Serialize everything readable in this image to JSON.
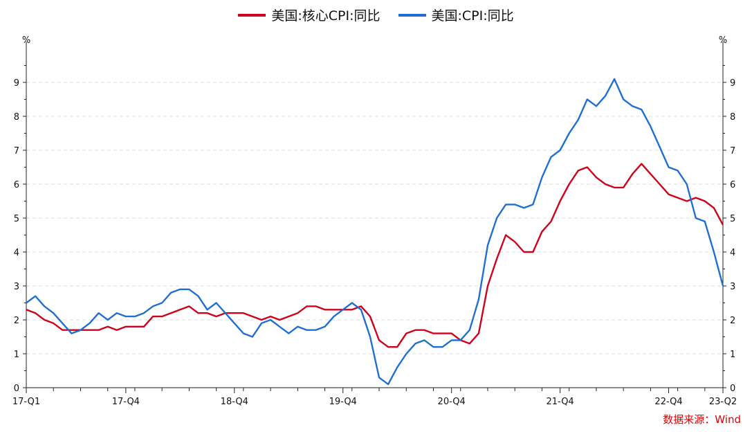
{
  "chart_data": {
    "type": "line",
    "y_unit_left": "%",
    "y_unit_right": "%",
    "ylim": [
      0,
      10
    ],
    "yticks": [
      0,
      1,
      2,
      3,
      4,
      5,
      6,
      7,
      8,
      9
    ],
    "grid": true,
    "legend_position": "top-center",
    "x_range_months": [
      "2017-01",
      "2023-06"
    ],
    "x_tick_labels": [
      {
        "label": "17-Q1",
        "month": "2017-01"
      },
      {
        "label": "17-Q4",
        "month": "2017-12"
      },
      {
        "label": "18-Q4",
        "month": "2018-12"
      },
      {
        "label": "19-Q4",
        "month": "2019-12"
      },
      {
        "label": "20-Q4",
        "month": "2020-12"
      },
      {
        "label": "21-Q4",
        "month": "2021-12"
      },
      {
        "label": "22-Q4",
        "month": "2022-12"
      },
      {
        "label": "23-Q2",
        "month": "2023-06"
      }
    ],
    "series": [
      {
        "name": "美国:核心CPI:同比",
        "color": "#d0021b",
        "x": [
          "2017-01",
          "2017-02",
          "2017-03",
          "2017-04",
          "2017-05",
          "2017-06",
          "2017-07",
          "2017-08",
          "2017-09",
          "2017-10",
          "2017-11",
          "2017-12",
          "2018-01",
          "2018-02",
          "2018-03",
          "2018-04",
          "2018-05",
          "2018-06",
          "2018-07",
          "2018-08",
          "2018-09",
          "2018-10",
          "2018-11",
          "2018-12",
          "2019-01",
          "2019-02",
          "2019-03",
          "2019-04",
          "2019-05",
          "2019-06",
          "2019-07",
          "2019-08",
          "2019-09",
          "2019-10",
          "2019-11",
          "2019-12",
          "2020-01",
          "2020-02",
          "2020-03",
          "2020-04",
          "2020-05",
          "2020-06",
          "2020-07",
          "2020-08",
          "2020-09",
          "2020-10",
          "2020-11",
          "2020-12",
          "2021-01",
          "2021-02",
          "2021-03",
          "2021-04",
          "2021-05",
          "2021-06",
          "2021-07",
          "2021-08",
          "2021-09",
          "2021-10",
          "2021-11",
          "2021-12",
          "2022-01",
          "2022-02",
          "2022-03",
          "2022-04",
          "2022-05",
          "2022-06",
          "2022-07",
          "2022-08",
          "2022-09",
          "2022-10",
          "2022-11",
          "2022-12",
          "2023-01",
          "2023-02",
          "2023-03",
          "2023-04",
          "2023-05",
          "2023-06"
        ],
        "values": [
          2.3,
          2.2,
          2.0,
          1.9,
          1.7,
          1.7,
          1.7,
          1.7,
          1.7,
          1.8,
          1.7,
          1.8,
          1.8,
          1.8,
          2.1,
          2.1,
          2.2,
          2.3,
          2.4,
          2.2,
          2.2,
          2.1,
          2.2,
          2.2,
          2.2,
          2.1,
          2.0,
          2.1,
          2.0,
          2.1,
          2.2,
          2.4,
          2.4,
          2.3,
          2.3,
          2.3,
          2.3,
          2.4,
          2.1,
          1.4,
          1.2,
          1.2,
          1.6,
          1.7,
          1.7,
          1.6,
          1.6,
          1.6,
          1.4,
          1.3,
          1.6,
          3.0,
          3.8,
          4.5,
          4.3,
          4.0,
          4.0,
          4.6,
          4.9,
          5.5,
          6.0,
          6.4,
          6.5,
          6.2,
          6.0,
          5.9,
          5.9,
          6.3,
          6.6,
          6.3,
          6.0,
          5.7,
          5.6,
          5.5,
          5.6,
          5.5,
          5.3,
          4.8
        ]
      },
      {
        "name": "美国:CPI:同比",
        "color": "#1f6fd1",
        "x": [
          "2017-01",
          "2017-02",
          "2017-03",
          "2017-04",
          "2017-05",
          "2017-06",
          "2017-07",
          "2017-08",
          "2017-09",
          "2017-10",
          "2017-11",
          "2017-12",
          "2018-01",
          "2018-02",
          "2018-03",
          "2018-04",
          "2018-05",
          "2018-06",
          "2018-07",
          "2018-08",
          "2018-09",
          "2018-10",
          "2018-11",
          "2018-12",
          "2019-01",
          "2019-02",
          "2019-03",
          "2019-04",
          "2019-05",
          "2019-06",
          "2019-07",
          "2019-08",
          "2019-09",
          "2019-10",
          "2019-11",
          "2019-12",
          "2020-01",
          "2020-02",
          "2020-03",
          "2020-04",
          "2020-05",
          "2020-06",
          "2020-07",
          "2020-08",
          "2020-09",
          "2020-10",
          "2020-11",
          "2020-12",
          "2021-01",
          "2021-02",
          "2021-03",
          "2021-04",
          "2021-05",
          "2021-06",
          "2021-07",
          "2021-08",
          "2021-09",
          "2021-10",
          "2021-11",
          "2021-12",
          "2022-01",
          "2022-02",
          "2022-03",
          "2022-04",
          "2022-05",
          "2022-06",
          "2022-07",
          "2022-08",
          "2022-09",
          "2022-10",
          "2022-11",
          "2022-12",
          "2023-01",
          "2023-02",
          "2023-03",
          "2023-04",
          "2023-05",
          "2023-06"
        ],
        "values": [
          2.5,
          2.7,
          2.4,
          2.2,
          1.9,
          1.6,
          1.7,
          1.9,
          2.2,
          2.0,
          2.2,
          2.1,
          2.1,
          2.2,
          2.4,
          2.5,
          2.8,
          2.9,
          2.9,
          2.7,
          2.3,
          2.5,
          2.2,
          1.9,
          1.6,
          1.5,
          1.9,
          2.0,
          1.8,
          1.6,
          1.8,
          1.7,
          1.7,
          1.8,
          2.1,
          2.3,
          2.5,
          2.3,
          1.5,
          0.3,
          0.1,
          0.6,
          1.0,
          1.3,
          1.4,
          1.2,
          1.2,
          1.4,
          1.4,
          1.7,
          2.6,
          4.2,
          5.0,
          5.4,
          5.4,
          5.3,
          5.4,
          6.2,
          6.8,
          7.0,
          7.5,
          7.9,
          8.5,
          8.3,
          8.6,
          9.1,
          8.5,
          8.3,
          8.2,
          7.7,
          7.1,
          6.5,
          6.4,
          6.0,
          5.0,
          4.9,
          4.0,
          3.0
        ]
      }
    ]
  },
  "legend": {
    "items": [
      {
        "label": "美国:核心CPI:同比",
        "color": "#d0021b"
      },
      {
        "label": "美国:CPI:同比",
        "color": "#1f6fd1"
      }
    ]
  },
  "source_note": "数据来源：Wind"
}
